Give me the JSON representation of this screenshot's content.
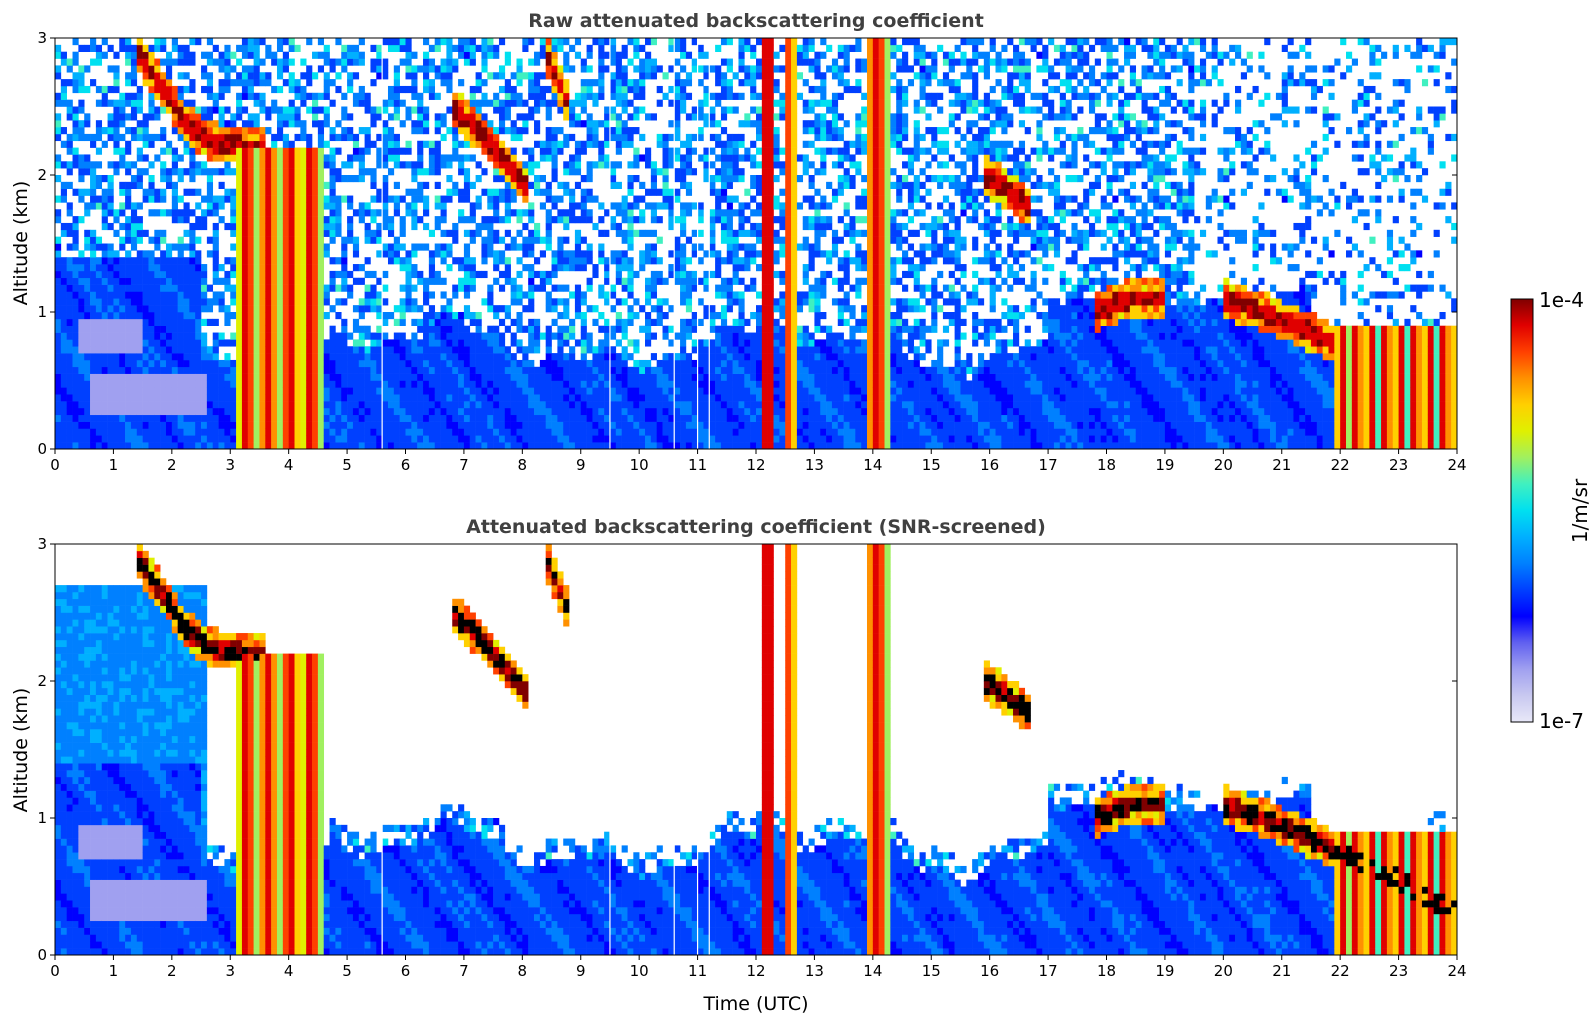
{
  "chart_data": [
    {
      "type": "heatmap",
      "title": "Raw attenuated backscattering coefficient",
      "xlabel": "",
      "ylabel": "Altitude (km)",
      "xlim": [
        0,
        24
      ],
      "ylim": [
        0,
        3
      ],
      "xticks": [
        "0",
        "1",
        "2",
        "3",
        "4",
        "5",
        "6",
        "7",
        "8",
        "9",
        "10",
        "11",
        "12",
        "13",
        "14",
        "15",
        "16",
        "17",
        "18",
        "19",
        "20",
        "21",
        "22",
        "23",
        "24"
      ],
      "yticks": [
        "0",
        "1",
        "2",
        "3"
      ],
      "screened": false,
      "precip_columns": [
        {
          "start": 3.15,
          "end": 4.55,
          "top": 2.2
        },
        {
          "start": 12.1,
          "end": 12.25,
          "top": 3.0
        },
        {
          "start": 12.5,
          "end": 12.65,
          "top": 3.0
        },
        {
          "start": 13.95,
          "end": 14.25,
          "top": 3.0
        },
        {
          "start": 21.9,
          "end": 23.95,
          "top": 0.9
        }
      ],
      "cloud_layers": [
        {
          "points": [
            [
              1.4,
              2.9
            ],
            [
              1.9,
              2.6
            ],
            [
              2.2,
              2.4
            ],
            [
              2.6,
              2.25
            ],
            [
              3.3,
              2.2
            ],
            [
              3.6,
              2.2
            ]
          ]
        },
        {
          "points": [
            [
              6.8,
              2.5
            ],
            [
              7.3,
              2.3
            ],
            [
              7.6,
              2.15
            ],
            [
              7.9,
              2.0
            ],
            [
              8.1,
              1.9
            ]
          ]
        },
        {
          "points": [
            [
              8.4,
              2.9
            ],
            [
              8.8,
              2.5
            ]
          ]
        },
        {
          "points": [
            [
              15.9,
              2.0
            ],
            [
              16.3,
              1.9
            ],
            [
              16.7,
              1.75
            ]
          ]
        },
        {
          "points": [
            [
              17.8,
              1.0
            ],
            [
              18.4,
              1.1
            ],
            [
              19.0,
              1.1
            ]
          ]
        },
        {
          "points": [
            [
              20.0,
              1.1
            ],
            [
              20.8,
              0.98
            ],
            [
              21.5,
              0.85
            ],
            [
              22.3,
              0.7
            ],
            [
              23.0,
              0.55
            ],
            [
              24.0,
              0.3
            ]
          ]
        }
      ]
    },
    {
      "type": "heatmap",
      "title": "Attenuated backscattering coefficient (SNR-screened)",
      "xlabel": "Time (UTC)",
      "ylabel": "Altitude (km)",
      "xlim": [
        0,
        24
      ],
      "ylim": [
        0,
        3
      ],
      "xticks": [
        "0",
        "1",
        "2",
        "3",
        "4",
        "5",
        "6",
        "7",
        "8",
        "9",
        "10",
        "11",
        "12",
        "13",
        "14",
        "15",
        "16",
        "17",
        "18",
        "19",
        "20",
        "21",
        "22",
        "23",
        "24"
      ],
      "yticks": [
        "0",
        "1",
        "2",
        "3"
      ],
      "screened": true,
      "precip_columns": [
        {
          "start": 3.15,
          "end": 4.55,
          "top": 2.2
        },
        {
          "start": 12.1,
          "end": 12.25,
          "top": 3.0
        },
        {
          "start": 12.5,
          "end": 12.65,
          "top": 3.0
        },
        {
          "start": 13.95,
          "end": 14.25,
          "top": 3.0
        },
        {
          "start": 21.9,
          "end": 23.95,
          "top": 0.9
        }
      ],
      "cloud_layers": [
        {
          "points": [
            [
              1.4,
              2.9
            ],
            [
              1.9,
              2.6
            ],
            [
              2.2,
              2.4
            ],
            [
              2.6,
              2.25
            ],
            [
              3.3,
              2.2
            ],
            [
              3.6,
              2.2
            ]
          ]
        },
        {
          "points": [
            [
              6.8,
              2.5
            ],
            [
              7.3,
              2.3
            ],
            [
              7.6,
              2.15
            ],
            [
              7.9,
              2.0
            ],
            [
              8.1,
              1.9
            ]
          ]
        },
        {
          "points": [
            [
              8.4,
              2.9
            ],
            [
              8.8,
              2.5
            ]
          ]
        },
        {
          "points": [
            [
              15.9,
              2.0
            ],
            [
              16.3,
              1.9
            ],
            [
              16.7,
              1.75
            ]
          ]
        },
        {
          "points": [
            [
              17.8,
              1.0
            ],
            [
              18.4,
              1.1
            ],
            [
              19.0,
              1.1
            ]
          ]
        },
        {
          "points": [
            [
              20.0,
              1.1
            ],
            [
              20.8,
              0.98
            ],
            [
              21.5,
              0.85
            ],
            [
              22.3,
              0.7
            ],
            [
              23.0,
              0.55
            ],
            [
              24.0,
              0.3
            ]
          ]
        }
      ]
    }
  ],
  "colorbar": {
    "label": "1/m/sr",
    "min_label": "1e-7",
    "max_label": "1e-4",
    "scale": "log",
    "colors": [
      "#e8e8f8",
      "#c8c8f0",
      "#a0a0f0",
      "#6060f0",
      "#0000ff",
      "#0040ff",
      "#0080ff",
      "#00b0ff",
      "#00e0f0",
      "#40f0c0",
      "#a0f060",
      "#e0f000",
      "#ffd000",
      "#ff9000",
      "#ff4000",
      "#e00000",
      "#800000"
    ]
  }
}
